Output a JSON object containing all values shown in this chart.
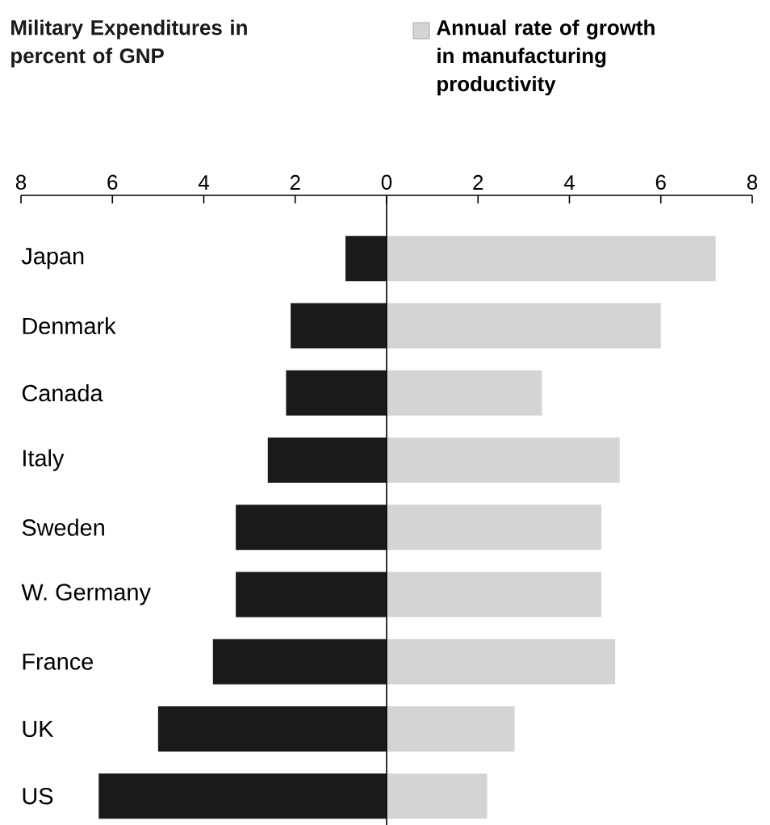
{
  "chart_data": {
    "type": "bar",
    "orientation": "horizontal",
    "stacked": true,
    "categories": [
      "Japan",
      "Denmark",
      "Canada",
      "Italy",
      "Sweden",
      "W. Germany",
      "France",
      "UK",
      "US"
    ],
    "series": [
      {
        "name": "Military Expenditures in percent of GNP",
        "color": "#1a1a1a",
        "values": [
          -0.9,
          -2.1,
          -2.2,
          -2.6,
          -3.3,
          -3.3,
          -3.8,
          -5.0,
          -6.3
        ]
      },
      {
        "name": "Annual rate of growth in manufacturing productivity",
        "color": "#d4d4d4",
        "values": [
          7.2,
          6.0,
          3.4,
          5.1,
          4.7,
          4.7,
          5.0,
          2.8,
          2.2
        ]
      }
    ],
    "xlim": [
      -8,
      8
    ],
    "xticks": [
      {
        "value": -8,
        "label": "8"
      },
      {
        "value": -6,
        "label": "6"
      },
      {
        "value": -4,
        "label": "4"
      },
      {
        "value": -2,
        "label": "2"
      },
      0,
      2,
      4,
      6,
      8
    ],
    "ref_lines": [
      {
        "axis": "x",
        "value": 0
      }
    ]
  }
}
